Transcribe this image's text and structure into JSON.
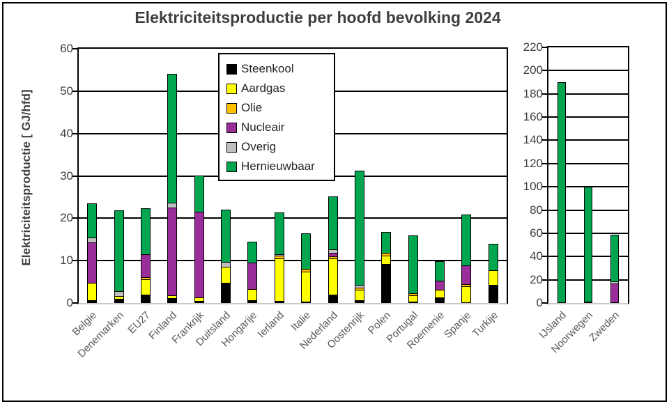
{
  "chart_data": {
    "type": "bar",
    "variant": "stacked",
    "title": "Elektriciteitsproductie per hoofd bevolking 2024",
    "ylabel": "Elektriciteitsproductie  [ GJ/hfd]",
    "legend": [
      "Steenkool",
      "Aardgas",
      "Olie",
      "Nucleair",
      "Overig",
      "Hernieuwbaar"
    ],
    "legend_position": "top-center-inside-left-panel",
    "grid": true,
    "colors": {
      "Steenkool": "#000000",
      "Aardgas": "#FFFF00",
      "Olie": "#FFC000",
      "Nucleair": "#9B2D9B",
      "Overig": "#C0C0C0",
      "Hernieuwbaar": "#00A64F"
    },
    "panels": [
      {
        "id": "europe",
        "ylim": [
          0,
          60
        ],
        "ytick_step": 10,
        "categories": [
          "Belgie",
          "Denemarken",
          "EU27",
          "Finland",
          "Frankrijk",
          "Duitsland",
          "Hongarije",
          "Ierland",
          "Italie",
          "Nederland",
          "Oostenrijk",
          "Polen",
          "Portugal",
          "Roemenie",
          "Spanje",
          "Turkije"
        ],
        "series": [
          {
            "name": "Steenkool",
            "values": [
              0.6,
              1.0,
              2.0,
              1.2,
              0.5,
              4.8,
              0.7,
              0.5,
              0.3,
              2.0,
              0.7,
              9.2,
              0.3,
              1.3,
              0.2,
              4.2
            ]
          },
          {
            "name": "Aardgas",
            "values": [
              4.2,
              0.6,
              3.6,
              0.6,
              0.8,
              3.8,
              2.6,
              10.1,
              7.1,
              8.5,
              2.4,
              2.0,
              1.5,
              1.8,
              3.8,
              3.6
            ]
          },
          {
            "name": "Olie",
            "values": [
              0,
              0,
              0.5,
              0,
              0,
              0,
              0,
              0.5,
              0.7,
              0.5,
              0.5,
              0.6,
              0.5,
              0,
              0.5,
              0
            ]
          },
          {
            "name": "Nucleair",
            "values": [
              9.5,
              0,
              5.4,
              20.7,
              20.2,
              0,
              6.3,
              0,
              0,
              0.8,
              0,
              0,
              0,
              2.1,
              4.3,
              0
            ]
          },
          {
            "name": "Overig",
            "values": [
              1.1,
              1.2,
              0,
              1.1,
              0,
              1.1,
              0,
              0.4,
              0,
              0.8,
              0.7,
              0,
              0,
              0,
              0,
              0
            ]
          },
          {
            "name": "Hernieuwbaar",
            "values": [
              8.1,
              19.1,
              10.9,
              30.4,
              8.5,
              12.4,
              4.8,
              9.8,
              8.3,
              12.5,
              27.0,
              5.0,
              13.7,
              4.7,
              12.1,
              6.2
            ]
          }
        ]
      },
      {
        "id": "nordics",
        "ylim": [
          0,
          220
        ],
        "ytick_step": 20,
        "categories": [
          "IJsland",
          "Noorwegen",
          "Zweden"
        ],
        "series": [
          {
            "name": "Steenkool",
            "values": [
              0,
              0,
              0
            ]
          },
          {
            "name": "Aardgas",
            "values": [
              0,
              1,
              0
            ]
          },
          {
            "name": "Olie",
            "values": [
              0,
              0,
              0
            ]
          },
          {
            "name": "Nucleair",
            "values": [
              0,
              0,
              17
            ]
          },
          {
            "name": "Overig",
            "values": [
              0,
              0,
              1.5
            ]
          },
          {
            "name": "Hernieuwbaar",
            "values": [
              190,
              99,
              40
            ]
          }
        ]
      }
    ]
  }
}
